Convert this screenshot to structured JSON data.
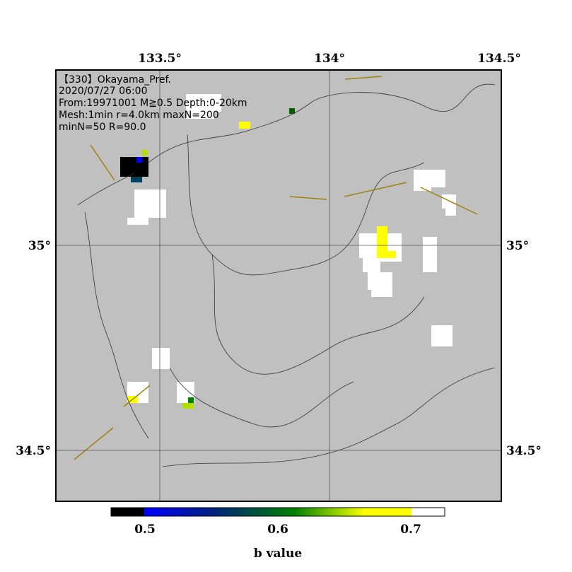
{
  "map": {
    "info": [
      "【330】Okayama_Pref.",
      "2020/07/27 06:00",
      "From:19971001 M≧0.5 Depth:0-20km",
      "Mesh:1min r=4.0km maxN=200",
      "minN=50 R=90.0"
    ],
    "lon_labels": [
      "133.5°",
      "134°",
      "134.5°"
    ],
    "lat_labels": [
      "35°",
      "34.5°"
    ],
    "colorbar": {
      "labels": [
        "0.5",
        "0.6",
        "0.7"
      ],
      "title": "b value"
    }
  }
}
